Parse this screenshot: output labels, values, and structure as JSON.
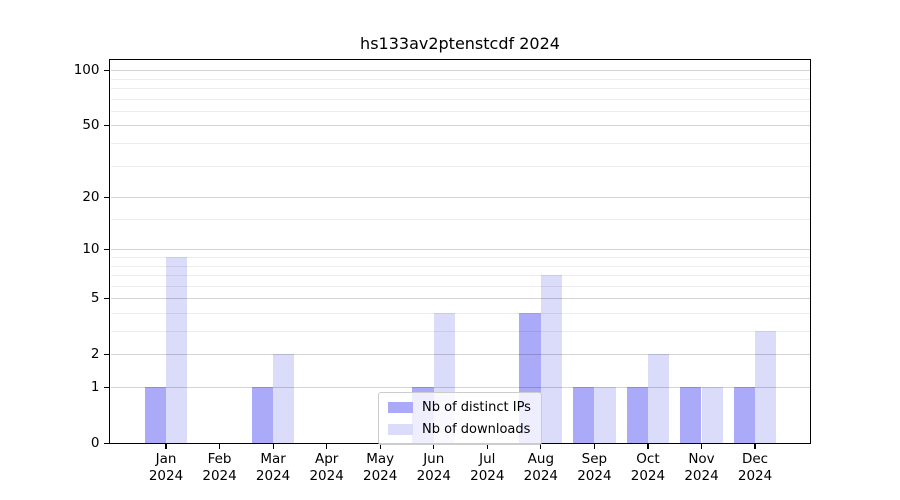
{
  "chart_data": {
    "type": "bar",
    "title": "hs133av2ptenstcdf 2024",
    "categories": [
      {
        "month": "Jan",
        "year": "2024"
      },
      {
        "month": "Feb",
        "year": "2024"
      },
      {
        "month": "Mar",
        "year": "2024"
      },
      {
        "month": "Apr",
        "year": "2024"
      },
      {
        "month": "May",
        "year": "2024"
      },
      {
        "month": "Jun",
        "year": "2024"
      },
      {
        "month": "Jul",
        "year": "2024"
      },
      {
        "month": "Aug",
        "year": "2024"
      },
      {
        "month": "Sep",
        "year": "2024"
      },
      {
        "month": "Oct",
        "year": "2024"
      },
      {
        "month": "Nov",
        "year": "2024"
      },
      {
        "month": "Dec",
        "year": "2024"
      }
    ],
    "series": [
      {
        "name": "Nb of distinct IPs",
        "color": "#aaaaf8",
        "values": [
          1,
          0,
          1,
          0,
          0,
          1,
          0,
          4,
          1,
          1,
          1,
          1
        ]
      },
      {
        "name": "Nb of downloads",
        "color": "#dbdbfa",
        "values": [
          9,
          0,
          2,
          0,
          0,
          4,
          0,
          7,
          1,
          2,
          1,
          3
        ]
      }
    ],
    "xlabel": "",
    "ylabel": "",
    "y_axis": {
      "scale": "log10(1+v)",
      "major_ticks": [
        0,
        1,
        2,
        5,
        10,
        20,
        50,
        100
      ],
      "minor_gridlines": [
        3,
        4,
        6,
        7,
        8,
        9,
        15,
        30,
        40,
        60,
        70,
        80,
        90
      ],
      "top_value": 113
    },
    "grid": true,
    "legend_position": "lower center"
  },
  "colors": {
    "background": "#ffffff",
    "spine": "#000000",
    "legend_border": "#cccccc"
  }
}
